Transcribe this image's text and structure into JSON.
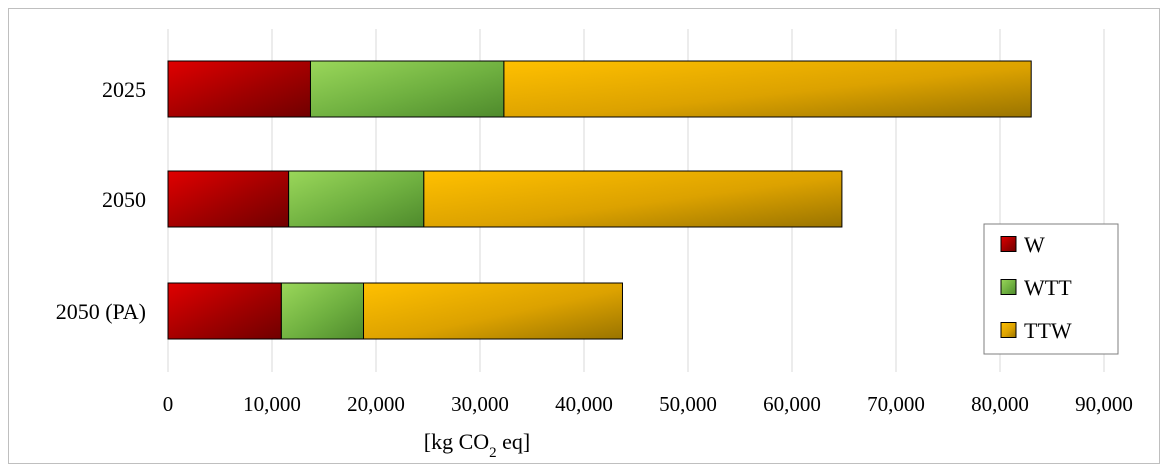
{
  "chart_data": {
    "type": "bar",
    "orientation": "horizontal",
    "stacked": true,
    "categories": [
      "2025",
      "2050",
      "2050 (PA)"
    ],
    "series": [
      {
        "name": "W",
        "values": [
          13700,
          11600,
          10900
        ]
      },
      {
        "name": "WTT",
        "values": [
          18600,
          13000,
          7900
        ]
      },
      {
        "name": "TTW",
        "values": [
          50700,
          40200,
          24900
        ]
      }
    ],
    "colors": {
      "W": [
        "#e00000",
        "#a00000",
        "#700000"
      ],
      "WTT": [
        "#9ad75a",
        "#6fb040",
        "#4e8a2c"
      ],
      "TTW": [
        "#ffc000",
        "#dca200",
        "#9a7400"
      ]
    },
    "xlabel_main": "[kg CO",
    "xlabel_sub": "2",
    "xlabel_end": " eq]",
    "ylabel": "",
    "title": "",
    "xlim": [
      0,
      90000
    ],
    "x_ticks": [
      0,
      10000,
      20000,
      30000,
      40000,
      50000,
      60000,
      70000,
      80000,
      90000
    ],
    "x_tick_labels": [
      "0",
      "10,000",
      "20,000",
      "30,000",
      "40,000",
      "50,000",
      "60,000",
      "70,000",
      "80,000",
      "90,000"
    ],
    "grid": "vertical",
    "legend_position": "bottom-right"
  }
}
